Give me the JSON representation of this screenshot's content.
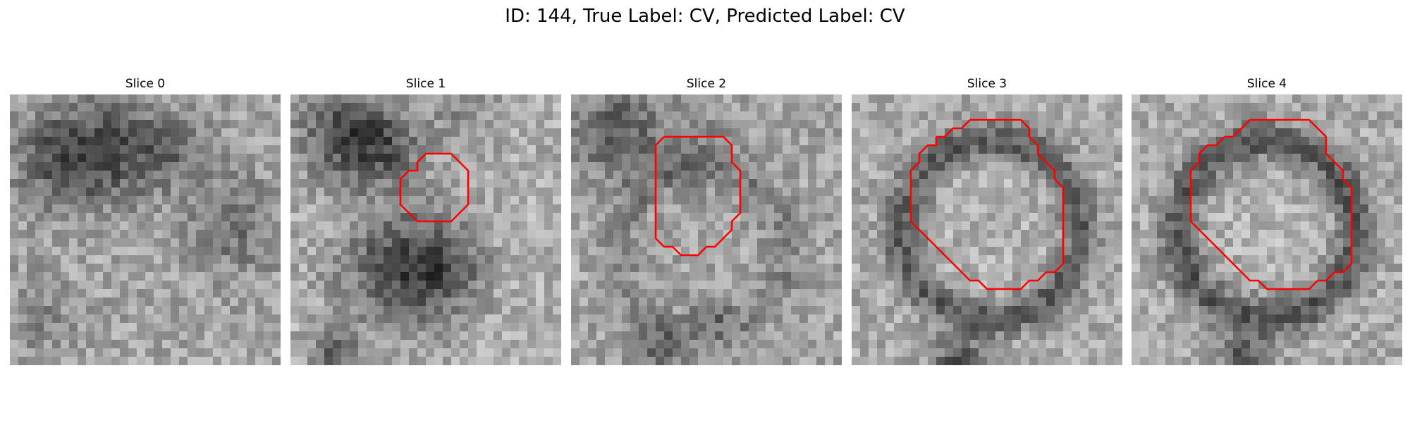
{
  "figure": {
    "title": "ID: 144, True Label: CV, Predicted Label: CV",
    "contour_color": "#ff0000"
  },
  "panels": [
    {
      "title": "Slice 0",
      "has_contour": false
    },
    {
      "title": "Slice 1",
      "has_contour": true
    },
    {
      "title": "Slice 2",
      "has_contour": true
    },
    {
      "title": "Slice 3",
      "has_contour": true
    },
    {
      "title": "Slice 4",
      "has_contour": true
    }
  ]
}
